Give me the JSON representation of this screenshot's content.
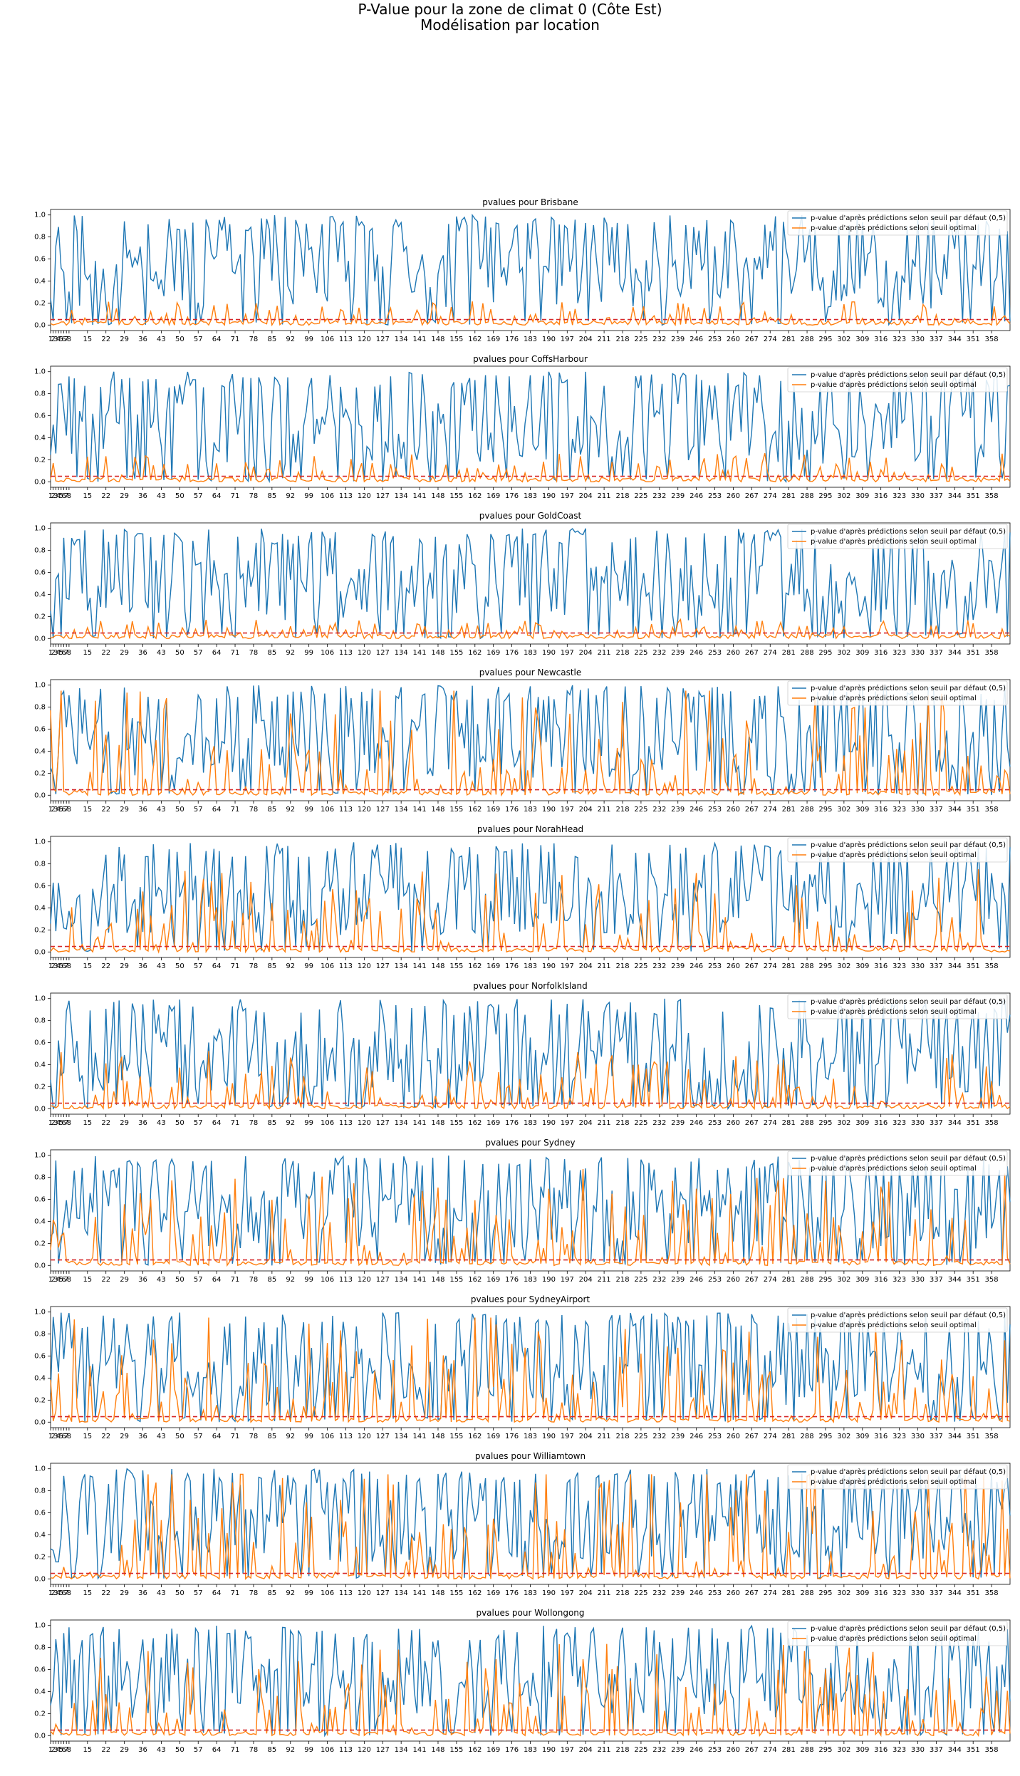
{
  "figure": {
    "title_line1": "P-Value pour la zone de climat 0 (Côte Est)",
    "title_line2": "Modélisation par location"
  },
  "colors": {
    "default_series": "#1f77b4",
    "optimal_series": "#ff7f0e",
    "threshold": "#d62728"
  },
  "chart_data": [
    {
      "type": "line",
      "title": "pvalues pour Brisbane",
      "ylim": [
        -0.05,
        1.05
      ],
      "y_ticks": [
        0.0,
        0.2,
        0.4,
        0.6,
        0.8,
        1.0
      ],
      "threshold": 0.05,
      "legend_position": "top-right",
      "seed": 11,
      "opt_scale": 0.1,
      "series": [
        {
          "name": "p-value d'après prédictions selon seuil par défaut (0,5)"
        },
        {
          "name": "p-value d'après prédictions selon seuil optimal"
        }
      ]
    },
    {
      "type": "line",
      "title": "pvalues pour CoffsHarbour",
      "ylim": [
        -0.05,
        1.05
      ],
      "y_ticks": [
        0.0,
        0.2,
        0.4,
        0.6,
        0.8,
        1.0
      ],
      "threshold": 0.05,
      "legend_position": "top-right",
      "seed": 23,
      "opt_scale": 0.12,
      "series": [
        {
          "name": "p-value d'après prédictions selon seuil par défaut (0,5)"
        },
        {
          "name": "p-value d'après prédictions selon seuil optimal"
        }
      ]
    },
    {
      "type": "line",
      "title": "pvalues pour GoldCoast",
      "ylim": [
        -0.05,
        1.05
      ],
      "y_ticks": [
        0.0,
        0.2,
        0.4,
        0.6,
        0.8,
        1.0
      ],
      "threshold": 0.05,
      "legend_position": "top-right",
      "seed": 37,
      "opt_scale": 0.08,
      "series": [
        {
          "name": "p-value d'après prédictions selon seuil par défaut (0,5)"
        },
        {
          "name": "p-value d'après prédictions selon seuil optimal"
        }
      ]
    },
    {
      "type": "line",
      "title": "pvalues pour Newcastle",
      "ylim": [
        -0.05,
        1.05
      ],
      "y_ticks": [
        0.0,
        0.2,
        0.4,
        0.6,
        0.8,
        1.0
      ],
      "threshold": 0.05,
      "legend_position": "top-right",
      "seed": 41,
      "opt_scale": 0.45,
      "series": [
        {
          "name": "p-value d'après prédictions selon seuil par défaut (0,5)"
        },
        {
          "name": "p-value d'après prédictions selon seuil optimal"
        }
      ]
    },
    {
      "type": "line",
      "title": "pvalues pour NorahHead",
      "ylim": [
        -0.05,
        1.05
      ],
      "y_ticks": [
        0.0,
        0.2,
        0.4,
        0.6,
        0.8,
        1.0
      ],
      "threshold": 0.05,
      "legend_position": "top-right",
      "seed": 53,
      "opt_scale": 0.35,
      "series": [
        {
          "name": "p-value d'après prédictions selon seuil par défaut (0,5)"
        },
        {
          "name": "p-value d'après prédictions selon seuil optimal"
        }
      ]
    },
    {
      "type": "line",
      "title": "pvalues pour NorfolkIsland",
      "ylim": [
        -0.05,
        1.05
      ],
      "y_ticks": [
        0.0,
        0.2,
        0.4,
        0.6,
        0.8,
        1.0
      ],
      "threshold": 0.05,
      "legend_position": "top-right",
      "seed": 67,
      "opt_scale": 0.25,
      "series": [
        {
          "name": "p-value d'après prédictions selon seuil par défaut (0,5)"
        },
        {
          "name": "p-value d'après prédictions selon seuil optimal"
        }
      ]
    },
    {
      "type": "line",
      "title": "pvalues pour Sydney",
      "ylim": [
        -0.05,
        1.05
      ],
      "y_ticks": [
        0.0,
        0.2,
        0.4,
        0.6,
        0.8,
        1.0
      ],
      "threshold": 0.05,
      "legend_position": "top-right",
      "seed": 71,
      "opt_scale": 0.4,
      "series": [
        {
          "name": "p-value d'après prédictions selon seuil par défaut (0,5)"
        },
        {
          "name": "p-value d'après prédictions selon seuil optimal"
        }
      ]
    },
    {
      "type": "line",
      "title": "pvalues pour SydneyAirport",
      "ylim": [
        -0.05,
        1.05
      ],
      "y_ticks": [
        0.0,
        0.2,
        0.4,
        0.6,
        0.8,
        1.0
      ],
      "threshold": 0.05,
      "legend_position": "top-right",
      "seed": 83,
      "opt_scale": 0.45,
      "series": [
        {
          "name": "p-value d'après prédictions selon seuil par défaut (0,5)"
        },
        {
          "name": "p-value d'après prédictions selon seuil optimal"
        }
      ]
    },
    {
      "type": "line",
      "title": "pvalues pour Williamtown",
      "ylim": [
        -0.05,
        1.05
      ],
      "y_ticks": [
        0.0,
        0.2,
        0.4,
        0.6,
        0.8,
        1.0
      ],
      "threshold": 0.05,
      "legend_position": "top-right",
      "seed": 97,
      "opt_scale": 0.5,
      "series": [
        {
          "name": "p-value d'après prédictions selon seuil par défaut (0,5)"
        },
        {
          "name": "p-value d'après prédictions selon seuil optimal"
        }
      ]
    },
    {
      "type": "line",
      "title": "pvalues pour Wollongong",
      "ylim": [
        -0.05,
        1.05
      ],
      "y_ticks": [
        0.0,
        0.2,
        0.4,
        0.6,
        0.8,
        1.0
      ],
      "threshold": 0.05,
      "legend_position": "top-right",
      "seed": 101,
      "opt_scale": 0.38,
      "series": [
        {
          "name": "p-value d'après prédictions selon seuil par défaut (0,5)"
        },
        {
          "name": "p-value d'après prédictions selon seuil optimal"
        }
      ]
    }
  ],
  "x_axis": {
    "tick_labels": [
      "1",
      "2",
      "3",
      "4",
      "5",
      "6",
      "7",
      "8",
      "15",
      "22",
      "29",
      "36",
      "43",
      "50",
      "57",
      "64",
      "71",
      "78",
      "85",
      "92",
      "99",
      "106",
      "113",
      "120",
      "127",
      "134",
      "141",
      "148",
      "155",
      "162",
      "169",
      "176",
      "183",
      "190",
      "197",
      "204",
      "211",
      "218",
      "225",
      "232",
      "239",
      "246",
      "253",
      "260",
      "267",
      "274",
      "281",
      "288",
      "295",
      "302",
      "309",
      "316",
      "323",
      "330",
      "337",
      "344",
      "351",
      "358"
    ],
    "range": [
      1,
      365
    ]
  }
}
